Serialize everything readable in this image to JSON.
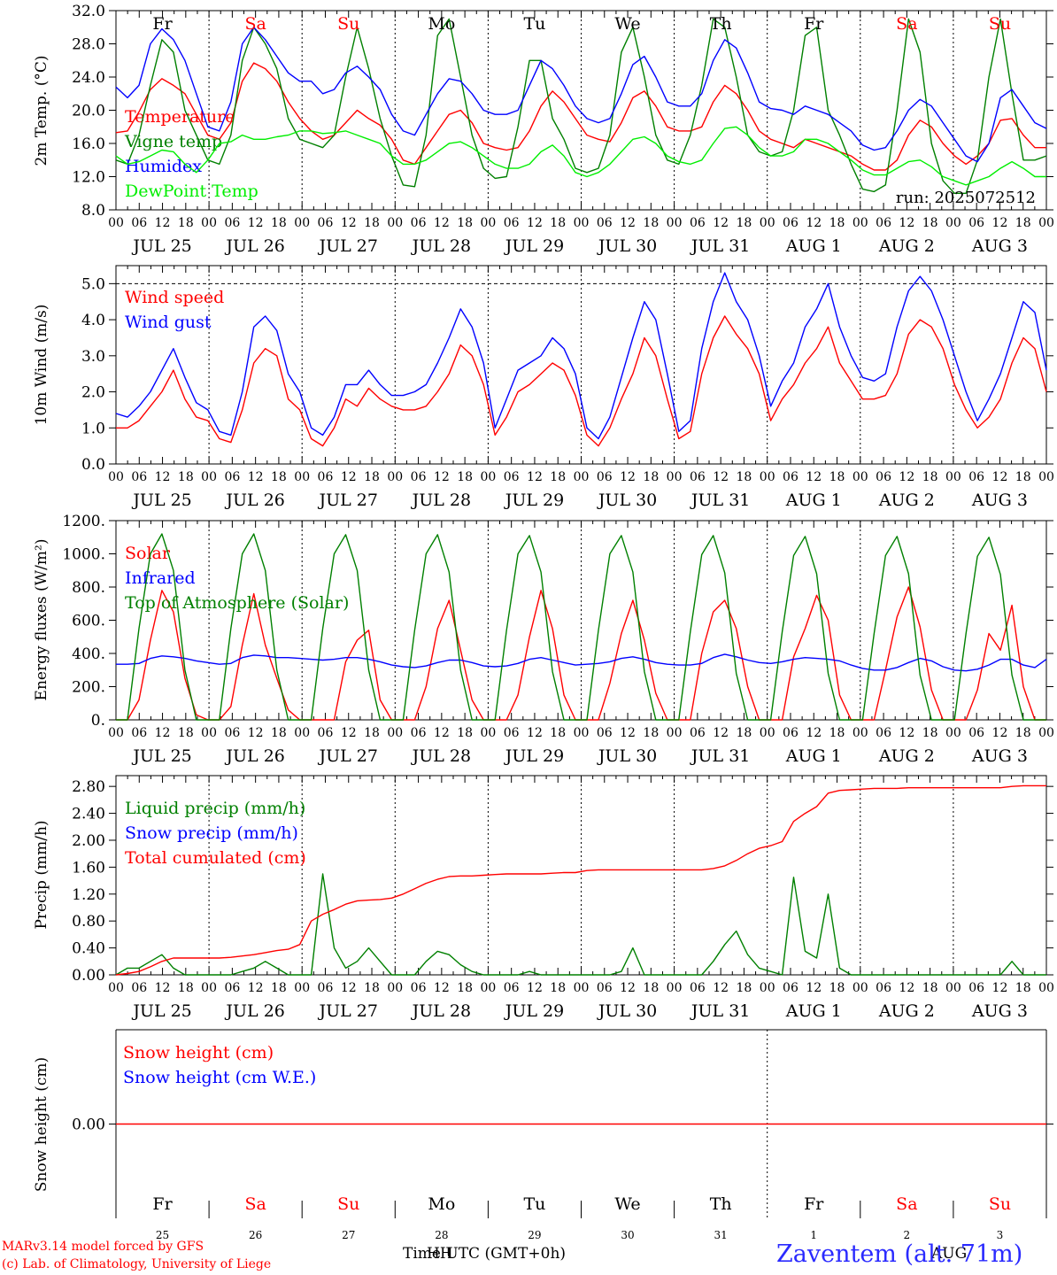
{
  "footer": {
    "model": "MARv3.14 model forced by GFS",
    "lab": "(c) Lab. of Climatology, University of Liege",
    "time_label": "Time UTC (GMT+0h)",
    "overlap_label": "HH",
    "aug_label": "AUG",
    "station": "Zaventem (alt. 71m)"
  },
  "days": [
    "Fr",
    "Sa",
    "Su",
    "Mo",
    "Tu",
    "We",
    "Th",
    "Fr",
    "Sa",
    "Su"
  ],
  "day_colors": [
    "#000000",
    "#ff0000",
    "#ff0000",
    "#000000",
    "#000000",
    "#000000",
    "#000000",
    "#000000",
    "#ff0000",
    "#ff0000"
  ],
  "dates": [
    "JUL 25",
    "JUL 26",
    "JUL 27",
    "JUL 28",
    "JUL 29",
    "JUL 30",
    "JUL 31",
    "AUG  1",
    "AUG  2",
    "AUG  3"
  ],
  "day_numbers": [
    "25",
    "26",
    "27",
    "28",
    "29",
    "30",
    "31",
    "1",
    "2",
    "3"
  ],
  "hour_ticks": [
    "00",
    "06",
    "12",
    "18"
  ],
  "colors": {
    "red": "#ff0000",
    "green": "#008000",
    "blue": "#0000ff",
    "lightgreen": "#00ee00"
  },
  "chart_data": [
    {
      "id": "temp",
      "type": "line",
      "ylabel": "2m Temp. (°C)",
      "ylim": [
        8,
        32
      ],
      "yticks": [
        "8.0",
        "12.0",
        "16.0",
        "20.0",
        "24.0",
        "28.0",
        "32.0"
      ],
      "run_label": "run: 2025072512",
      "series": [
        {
          "name": "Temperature",
          "color": "#ff0000",
          "values": [
            17.3,
            17.5,
            19.8,
            22.5,
            23.8,
            23,
            22,
            19.5,
            17,
            16.5,
            18.5,
            23.5,
            25.7,
            25,
            23.5,
            21,
            19,
            17.5,
            16.5,
            17,
            18.5,
            20,
            19,
            18.2,
            16.5,
            14,
            13.5,
            15.5,
            17.5,
            19.5,
            20,
            18.5,
            16,
            15.5,
            15.2,
            15.5,
            17.5,
            20.5,
            22.3,
            21,
            19,
            17,
            16.5,
            16.2,
            18.5,
            21.5,
            22.3,
            20.5,
            18,
            17.5,
            17.5,
            18,
            21,
            23,
            22,
            20,
            17.5,
            16.5,
            16,
            15.5,
            16.5,
            16,
            15.5,
            15,
            14.5,
            13.5,
            12.8,
            12.8,
            14,
            17,
            18.8,
            18,
            16,
            14.5,
            13.5,
            14.5,
            16,
            18.8,
            19,
            17,
            15.5,
            15.5
          ]
        },
        {
          "name": "Vigne temp",
          "color": "#008000",
          "values": [
            14,
            13.5,
            17,
            23,
            28.5,
            27,
            20,
            17,
            14,
            13.5,
            17,
            26,
            30,
            28,
            25,
            19,
            16.5,
            16,
            15.5,
            17,
            24,
            30,
            25,
            19,
            14.5,
            11,
            10.8,
            17,
            29,
            31,
            24,
            17,
            13,
            11.8,
            12,
            18,
            26,
            26,
            19,
            16.5,
            13,
            12.5,
            13,
            17,
            27,
            30,
            24,
            17,
            14,
            13.5,
            17,
            23,
            31,
            30,
            24,
            17,
            15,
            14.5,
            15,
            20,
            29,
            30,
            20,
            17,
            13.5,
            10.5,
            10.2,
            11,
            20,
            31,
            27,
            16,
            11.5,
            10,
            10,
            14,
            24,
            31,
            22,
            14,
            14,
            14.5
          ]
        },
        {
          "name": "Humidex",
          "color": "#0000ff",
          "values": [
            22.8,
            21.5,
            23,
            28,
            29.8,
            28.5,
            26,
            22,
            18,
            17.5,
            21,
            28,
            30,
            28.5,
            26.5,
            24.5,
            23.5,
            23.5,
            22,
            22.5,
            24.5,
            25.3,
            24,
            22.5,
            19.5,
            17.5,
            17,
            19.5,
            22,
            23.8,
            23.5,
            22,
            20,
            19.5,
            19.5,
            20,
            23,
            26,
            25,
            23,
            20.5,
            19,
            18.5,
            19,
            22,
            25.5,
            26.5,
            24,
            21,
            20.5,
            20.5,
            22,
            26,
            28.5,
            27.5,
            24.5,
            21,
            20.2,
            20,
            19.5,
            20.5,
            20,
            19.5,
            18.5,
            17.5,
            15.8,
            15.2,
            15.5,
            17.5,
            20,
            21.3,
            20.5,
            18.5,
            16.5,
            14.5,
            13.8,
            16,
            21.5,
            22.5,
            20.5,
            18.5,
            17.8
          ]
        },
        {
          "name": "DewPoint Temp",
          "color": "#00ee00",
          "values": [
            14.5,
            13.5,
            13.8,
            14.5,
            15.2,
            15,
            13.5,
            12.5,
            14,
            16,
            16.2,
            17,
            16.5,
            16.5,
            16.8,
            17,
            17.5,
            17.5,
            17.2,
            17.3,
            17.5,
            17,
            16.5,
            16,
            14.5,
            13.5,
            13.5,
            14,
            15,
            16,
            16.2,
            15.5,
            14.5,
            13.5,
            13,
            13,
            13.5,
            15,
            15.8,
            14.5,
            12.5,
            12,
            12.5,
            13.5,
            15,
            16.5,
            16.8,
            16,
            14.5,
            13.8,
            13.5,
            14,
            16,
            17.8,
            18,
            17,
            15.5,
            14.5,
            14.5,
            15,
            16.5,
            16.5,
            16,
            15,
            14,
            12.8,
            12.2,
            12.2,
            13,
            13.8,
            14,
            13.2,
            12,
            11.5,
            11,
            11.5,
            12,
            13,
            13.8,
            13,
            12,
            12
          ]
        }
      ]
    },
    {
      "id": "wind",
      "type": "line",
      "ylabel": "10m Wind (m/s)",
      "ylim": [
        0,
        5.5
      ],
      "yticks": [
        "0.0",
        "1.0",
        "2.0",
        "3.0",
        "4.0",
        "5.0"
      ],
      "series": [
        {
          "name": "Wind speed",
          "color": "#ff0000",
          "values": [
            1,
            1,
            1.2,
            1.6,
            2,
            2.6,
            1.8,
            1.3,
            1.2,
            0.7,
            0.6,
            1.5,
            2.8,
            3.2,
            3,
            1.8,
            1.5,
            0.7,
            0.5,
            1,
            1.8,
            1.6,
            2.1,
            1.8,
            1.6,
            1.5,
            1.5,
            1.6,
            2,
            2.5,
            3.3,
            3,
            2.2,
            0.8,
            1.3,
            2,
            2.2,
            2.5,
            2.8,
            2.6,
            1.9,
            0.8,
            0.5,
            1,
            1.8,
            2.5,
            3.5,
            3,
            1.8,
            0.7,
            0.9,
            2.5,
            3.5,
            4.1,
            3.6,
            3.2,
            2.5,
            1.2,
            1.8,
            2.2,
            2.8,
            3.2,
            3.8,
            2.8,
            2.3,
            1.8,
            1.8,
            1.9,
            2.5,
            3.6,
            4,
            3.8,
            3.2,
            2.2,
            1.5,
            1,
            1.3,
            1.8,
            2.8,
            3.5,
            3.2,
            2
          ]
        },
        {
          "name": "Wind gust",
          "color": "#0000ff",
          "values": [
            1.4,
            1.3,
            1.6,
            2,
            2.6,
            3.2,
            2.4,
            1.7,
            1.5,
            0.9,
            0.8,
            2,
            3.8,
            4.1,
            3.7,
            2.5,
            2,
            1,
            0.8,
            1.3,
            2.2,
            2.2,
            2.6,
            2.2,
            1.9,
            1.9,
            2,
            2.2,
            2.8,
            3.5,
            4.3,
            3.8,
            2.8,
            1,
            1.8,
            2.6,
            2.8,
            3,
            3.5,
            3.2,
            2.5,
            1,
            0.7,
            1.3,
            2.4,
            3.5,
            4.5,
            4,
            2.5,
            0.9,
            1.2,
            3.2,
            4.5,
            5.3,
            4.5,
            4,
            3,
            1.6,
            2.3,
            2.8,
            3.8,
            4.3,
            5,
            3.8,
            3,
            2.4,
            2.3,
            2.5,
            3.8,
            4.8,
            5.2,
            4.8,
            4,
            3,
            2,
            1.2,
            1.8,
            2.5,
            3.5,
            4.5,
            4.2,
            2.6
          ]
        }
      ]
    },
    {
      "id": "energy",
      "type": "line",
      "ylabel": "Energy fluxes (W/m²)",
      "ylim": [
        0,
        1200
      ],
      "yticks": [
        "0.",
        "200.",
        "400.",
        "600.",
        "800.",
        "1000.",
        "1200."
      ],
      "series": [
        {
          "name": "Solar",
          "color": "#ff0000",
          "values": [
            0,
            0,
            120,
            480,
            780,
            650,
            250,
            30,
            0,
            0,
            80,
            450,
            760,
            450,
            250,
            60,
            0,
            0,
            0,
            0,
            350,
            480,
            540,
            120,
            0,
            0,
            0,
            200,
            550,
            720,
            420,
            120,
            0,
            0,
            0,
            150,
            500,
            780,
            550,
            150,
            0,
            0,
            0,
            220,
            520,
            720,
            480,
            160,
            0,
            0,
            0,
            400,
            650,
            720,
            550,
            200,
            0,
            0,
            0,
            380,
            550,
            750,
            600,
            150,
            0,
            0,
            0,
            300,
            620,
            800,
            560,
            180,
            0,
            0,
            0,
            180,
            520,
            420,
            690,
            200,
            0,
            0
          ]
        },
        {
          "name": "Infrared",
          "color": "#0000ff",
          "values": [
            335,
            335,
            340,
            370,
            385,
            380,
            370,
            355,
            345,
            335,
            340,
            375,
            390,
            385,
            375,
            375,
            370,
            365,
            360,
            365,
            375,
            375,
            365,
            350,
            330,
            320,
            315,
            325,
            345,
            360,
            360,
            345,
            325,
            320,
            325,
            340,
            365,
            375,
            360,
            345,
            330,
            335,
            340,
            350,
            370,
            380,
            365,
            345,
            335,
            330,
            330,
            340,
            375,
            395,
            380,
            360,
            345,
            340,
            350,
            365,
            375,
            370,
            365,
            355,
            330,
            310,
            300,
            300,
            315,
            345,
            370,
            355,
            320,
            300,
            295,
            305,
            330,
            365,
            365,
            330,
            315,
            365
          ]
        },
        {
          "name": "Top of Atmosphere (Solar)",
          "color": "#008000",
          "values": [
            0,
            0,
            550,
            1000,
            1120,
            900,
            300,
            0,
            0,
            0,
            550,
            1000,
            1120,
            900,
            300,
            0,
            0,
            0,
            550,
            1000,
            1115,
            900,
            300,
            0,
            0,
            0,
            540,
            1000,
            1115,
            890,
            300,
            0,
            0,
            0,
            540,
            1000,
            1110,
            890,
            290,
            0,
            0,
            0,
            540,
            1000,
            1110,
            890,
            290,
            0,
            0,
            0,
            530,
            995,
            1110,
            885,
            280,
            0,
            0,
            0,
            530,
            990,
            1105,
            880,
            280,
            0,
            0,
            0,
            520,
            990,
            1105,
            880,
            270,
            0,
            0,
            0,
            520,
            985,
            1100,
            875,
            270,
            0,
            0,
            0
          ]
        }
      ]
    },
    {
      "id": "precip",
      "type": "line",
      "ylabel": "Precip (mm/h)",
      "ylim": [
        0,
        2.96
      ],
      "yticks": [
        "0.00",
        "0.40",
        "0.80",
        "1.20",
        "1.60",
        "2.00",
        "2.40",
        "2.80"
      ],
      "series": [
        {
          "name": "Liquid precip (mm/h)",
          "color": "#008000",
          "values": [
            0,
            0.1,
            0.1,
            0.2,
            0.3,
            0.1,
            0,
            0,
            0,
            0,
            0,
            0.05,
            0.1,
            0.2,
            0.1,
            0,
            0,
            0,
            1.5,
            0.4,
            0.1,
            0.2,
            0.4,
            0.2,
            0,
            0,
            0,
            0.2,
            0.35,
            0.3,
            0.15,
            0.05,
            0,
            0,
            0,
            0,
            0.05,
            0,
            0,
            0,
            0,
            0,
            0,
            0,
            0.05,
            0.4,
            0,
            0,
            0,
            0,
            0,
            0,
            0.2,
            0.45,
            0.65,
            0.3,
            0.1,
            0.05,
            0,
            1.45,
            0.35,
            0.25,
            1.2,
            0.1,
            0,
            0,
            0,
            0,
            0,
            0,
            0,
            0,
            0,
            0,
            0,
            0,
            0,
            0,
            0.2,
            0,
            0,
            0
          ]
        },
        {
          "name": "Snow precip (mm/h)",
          "color": "#0000ff",
          "values": []
        },
        {
          "name": "Total cumulated (cm)",
          "color": "#ff0000",
          "values": [
            0,
            0.02,
            0.05,
            0.12,
            0.2,
            0.25,
            0.25,
            0.25,
            0.25,
            0.25,
            0.26,
            0.28,
            0.3,
            0.33,
            0.36,
            0.38,
            0.45,
            0.8,
            0.9,
            0.97,
            1.05,
            1.1,
            1.11,
            1.12,
            1.14,
            1.2,
            1.28,
            1.36,
            1.42,
            1.46,
            1.47,
            1.47,
            1.48,
            1.49,
            1.5,
            1.5,
            1.5,
            1.5,
            1.51,
            1.52,
            1.52,
            1.55,
            1.56,
            1.56,
            1.56,
            1.56,
            1.56,
            1.56,
            1.56,
            1.56,
            1.56,
            1.56,
            1.58,
            1.62,
            1.7,
            1.8,
            1.88,
            1.92,
            1.98,
            2.28,
            2.4,
            2.5,
            2.7,
            2.74,
            2.75,
            2.76,
            2.77,
            2.77,
            2.77,
            2.78,
            2.78,
            2.78,
            2.78,
            2.78,
            2.78,
            2.78,
            2.78,
            2.78,
            2.8,
            2.81,
            2.81,
            2.81
          ]
        }
      ]
    },
    {
      "id": "snow",
      "type": "line",
      "ylabel": "Snow height (cm)",
      "ylim": [
        -1,
        1
      ],
      "yticks": [
        "0.00"
      ],
      "series": [
        {
          "name": "Snow height (cm)",
          "color": "#ff0000",
          "values": [
            0,
            0
          ]
        },
        {
          "name": "Snow height (cm W.E.)",
          "color": "#0000ff",
          "values": []
        }
      ]
    }
  ]
}
